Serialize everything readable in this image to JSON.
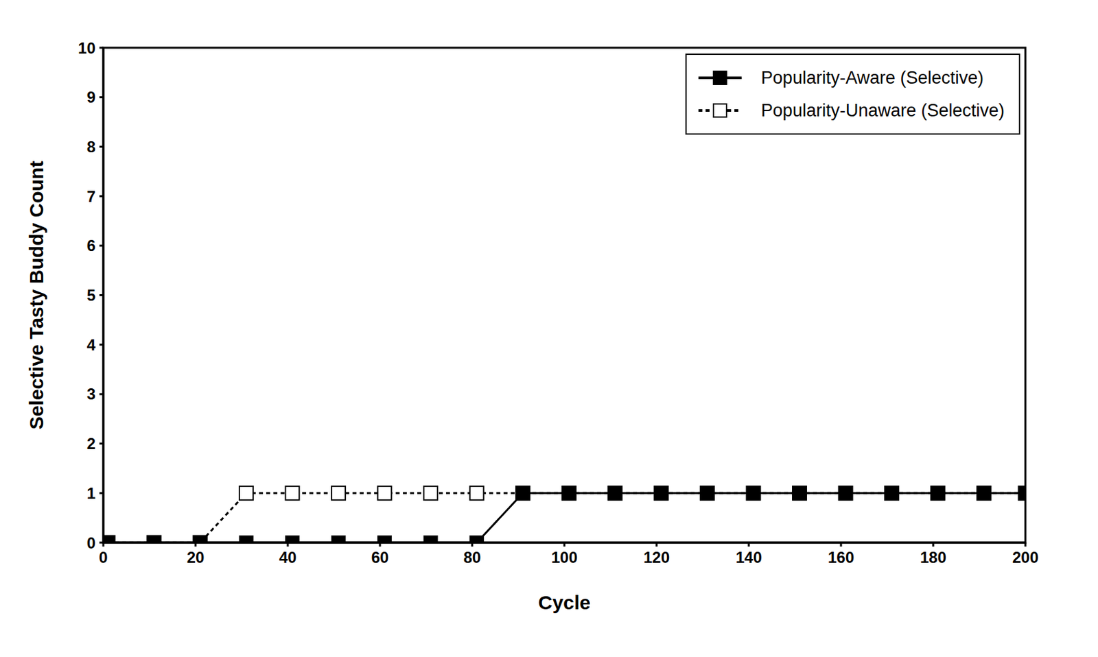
{
  "chart_data": {
    "type": "line",
    "x": [
      1,
      11,
      21,
      31,
      41,
      51,
      61,
      71,
      81,
      91,
      101,
      111,
      121,
      131,
      141,
      151,
      161,
      171,
      181,
      191,
      200
    ],
    "series": [
      {
        "name": "Popularity-Aware (Selective)",
        "color": "#000000",
        "marker": "square",
        "line_style": "solid",
        "values": [
          0,
          0,
          0,
          0,
          0,
          0,
          0,
          0,
          0,
          1,
          1,
          1,
          1,
          1,
          1,
          1,
          1,
          1,
          1,
          1,
          1
        ]
      },
      {
        "name": "Popularity-Unaware (Selective)",
        "color": "#000000",
        "marker": "open_square",
        "line_style": "dashed",
        "values": [
          0,
          0,
          0,
          1,
          1,
          1,
          1,
          1,
          1,
          1,
          1,
          1,
          1,
          1,
          1,
          1,
          1,
          1,
          1,
          1,
          1
        ]
      }
    ],
    "x_label": "Cycle",
    "y_label": "Selective Tasty Buddy Count",
    "xlim": [
      0,
      200
    ],
    "ylim": [
      0,
      10
    ],
    "xticks": [
      0,
      20,
      40,
      60,
      80,
      100,
      120,
      140,
      160,
      180,
      200
    ],
    "yticks": [
      0,
      1,
      2,
      3,
      4,
      5,
      6,
      7,
      8,
      9,
      10
    ],
    "legend": "upper right",
    "grid": false
  }
}
